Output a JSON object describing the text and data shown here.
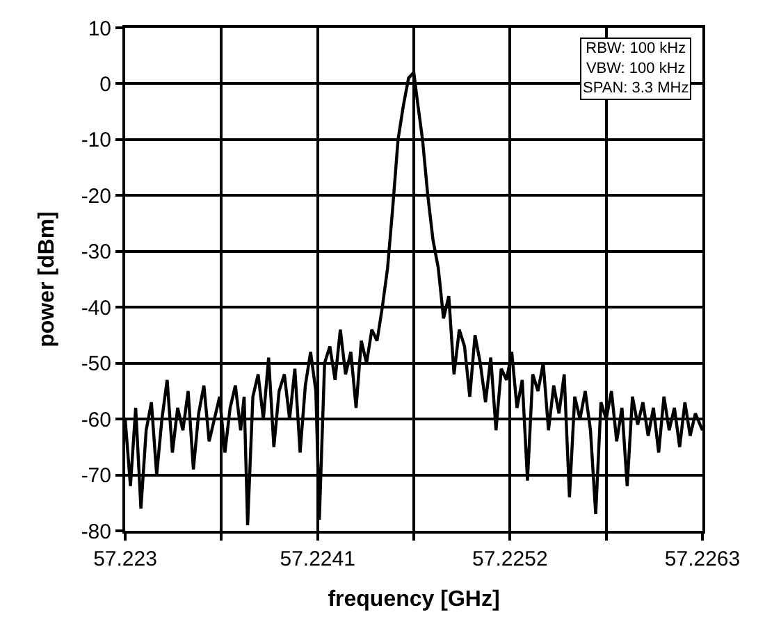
{
  "chart_data": {
    "type": "line",
    "xlabel": "frequency [GHz]",
    "ylabel": "power [dBm]",
    "x": [
      57.223,
      57.22303,
      57.22306,
      57.22309,
      57.22312,
      57.22315,
      57.22318,
      57.22321,
      57.22324,
      57.22327,
      57.2233,
      57.22333,
      57.22336,
      57.22339,
      57.22342,
      57.22345,
      57.22348,
      57.22351,
      57.22354,
      57.22357,
      57.2236,
      57.22363,
      57.22366,
      57.22368,
      57.2237,
      57.22373,
      57.22376,
      57.22379,
      57.22382,
      57.22385,
      57.22388,
      57.22391,
      57.22394,
      57.22397,
      57.224,
      57.22403,
      57.22406,
      57.22409,
      57.22411,
      57.22414,
      57.22417,
      57.2242,
      57.22423,
      57.22426,
      57.22429,
      57.22432,
      57.22435,
      57.22438,
      57.22441,
      57.22444,
      57.22447,
      57.2245,
      57.22453,
      57.22456,
      57.22459,
      57.22462,
      57.22465,
      57.22467,
      57.2247,
      57.22473,
      57.22476,
      57.22479,
      57.22482,
      57.22485,
      57.22488,
      57.22491,
      57.22494,
      57.22497,
      57.225,
      57.22503,
      57.22506,
      57.22509,
      57.22512,
      57.22515,
      57.22518,
      57.22521,
      57.22524,
      57.22527,
      57.2253,
      57.22533,
      57.22536,
      57.22539,
      57.22542,
      57.22545,
      57.22548,
      57.22551,
      57.22554,
      57.22557,
      57.2256,
      57.22563,
      57.22566,
      57.22569,
      57.22572,
      57.22575,
      57.22578,
      57.22581,
      57.22584,
      57.22587,
      57.2259,
      57.22593,
      57.22596,
      57.22599,
      57.22602,
      57.22605,
      57.22608,
      57.22611,
      57.22614,
      57.22617,
      57.2262,
      57.22623,
      57.22626,
      57.2263
    ],
    "values": [
      -60,
      -72,
      -58,
      -76,
      -62,
      -57,
      -70,
      -60,
      -53,
      -66,
      -58,
      -62,
      -55,
      -69,
      -59,
      -54,
      -64,
      -60,
      -56,
      -66,
      -58,
      -54,
      -62,
      -56,
      -79,
      -56,
      -52,
      -60,
      -49,
      -65,
      -55,
      -52,
      -60,
      -51,
      -66,
      -54,
      -48,
      -55,
      -78,
      -50,
      -47,
      -53,
      -44,
      -52,
      -48,
      -58,
      -46,
      -50,
      -44,
      -46,
      -40,
      -33,
      -22,
      -10,
      -4,
      1,
      2,
      -3,
      -10,
      -20,
      -28,
      -33,
      -42,
      -38,
      -52,
      -44,
      -47,
      -56,
      -45,
      -50,
      -57,
      -49,
      -62,
      -51,
      -53,
      -48,
      -58,
      -53,
      -71,
      -52,
      -55,
      -50,
      -62,
      -54,
      -59,
      -52,
      -74,
      -56,
      -60,
      -55,
      -62,
      -77,
      -57,
      -60,
      -55,
      -64,
      -58,
      -72,
      -56,
      -61,
      -57,
      -63,
      -58,
      -66,
      -56,
      -62,
      -58,
      -65,
      -57,
      -63,
      -59,
      -62
    ],
    "color": "#000000",
    "xlim": [
      57.223,
      57.2263
    ],
    "xticks": [
      57.223,
      {
        "value": 57.22355,
        "label": null
      },
      57.2241,
      {
        "value": 57.22465,
        "label": null
      },
      57.2252,
      {
        "value": 57.22575,
        "label": null
      },
      57.2263
    ],
    "ylim": [
      -80,
      10
    ],
    "yticks": [
      -80,
      -70,
      -60,
      -50,
      -40,
      -30,
      -20,
      -10,
      0,
      10
    ],
    "grid": true,
    "marker": "none",
    "line_style": "solid",
    "annotations": [
      "RBW: 100 kHz\nVBW: 100 kHz\nSPAN: 3.3 MHz"
    ]
  }
}
